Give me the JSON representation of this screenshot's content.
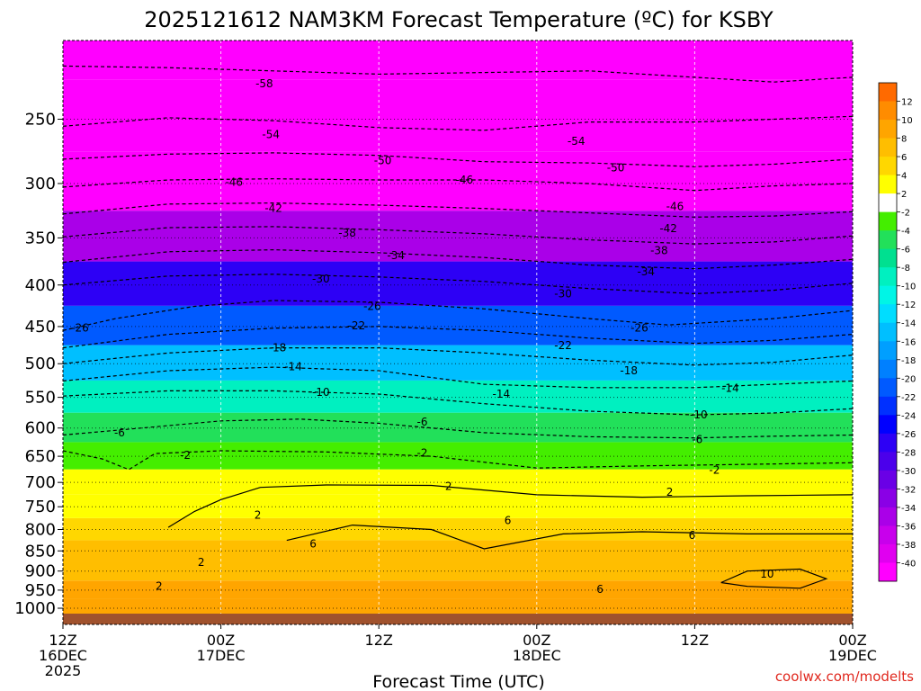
{
  "title": "2025121612 NAM3KM Forecast Temperature (ºC) for KSBY",
  "credit": "coolwx.com/modelts",
  "colors": {
    "credit": "#e0281e",
    "ground": "#a0522d"
  },
  "chart_data": {
    "type": "heatmap",
    "title": "2025121612 NAM3KM Forecast Temperature (ºC) for KSBY",
    "xlabel": "Forecast Time (UTC)",
    "ylabel": "",
    "x_ticks": [
      {
        "hour": 0,
        "lines": [
          "12Z",
          "16DEC",
          "2025"
        ]
      },
      {
        "hour": 12,
        "lines": [
          "00Z",
          "17DEC"
        ]
      },
      {
        "hour": 24,
        "lines": [
          "12Z"
        ]
      },
      {
        "hour": 36,
        "lines": [
          "00Z",
          "18DEC"
        ]
      },
      {
        "hour": 48,
        "lines": [
          "12Z"
        ]
      },
      {
        "hour": 60,
        "lines": [
          "00Z",
          "19DEC"
        ]
      }
    ],
    "xlim": [
      0,
      60
    ],
    "ylim": [
      1000,
      200
    ],
    "y_scale": "log-pressure",
    "y_ticks": [
      250,
      300,
      350,
      400,
      450,
      500,
      550,
      600,
      650,
      700,
      750,
      800,
      850,
      900,
      950,
      1000
    ],
    "colorbar": {
      "ticks": [
        12,
        10,
        8,
        6,
        4,
        2,
        -2,
        -4,
        -6,
        -8,
        -10,
        -12,
        -14,
        -16,
        -18,
        -20,
        -22,
        -24,
        -26,
        -28,
        -30,
        -32,
        -34,
        -36,
        -38,
        -40
      ],
      "levels": [
        {
          "min": 12,
          "max": 14,
          "color": "#ff6a00"
        },
        {
          "min": 10,
          "max": 12,
          "color": "#ff8c00"
        },
        {
          "min": 8,
          "max": 10,
          "color": "#ffa500"
        },
        {
          "min": 6,
          "max": 8,
          "color": "#ffbe00"
        },
        {
          "min": 4,
          "max": 6,
          "color": "#ffd700"
        },
        {
          "min": 2,
          "max": 4,
          "color": "#ffff00"
        },
        {
          "min": -2,
          "max": 2,
          "color": "#ffffff"
        },
        {
          "min": -4,
          "max": -2,
          "color": "#44ee00"
        },
        {
          "min": -6,
          "max": -4,
          "color": "#22e05a"
        },
        {
          "min": -8,
          "max": -6,
          "color": "#00e090"
        },
        {
          "min": -10,
          "max": -8,
          "color": "#00f0c0"
        },
        {
          "min": -12,
          "max": -10,
          "color": "#00f5e6"
        },
        {
          "min": -14,
          "max": -12,
          "color": "#00ddff"
        },
        {
          "min": -16,
          "max": -14,
          "color": "#00bfff"
        },
        {
          "min": -18,
          "max": -16,
          "color": "#009fff"
        },
        {
          "min": -20,
          "max": -18,
          "color": "#0080ff"
        },
        {
          "min": -22,
          "max": -20,
          "color": "#005aff"
        },
        {
          "min": -24,
          "max": -22,
          "color": "#0030ff"
        },
        {
          "min": -26,
          "max": -24,
          "color": "#0000ff"
        },
        {
          "min": -28,
          "max": -26,
          "color": "#2d00f5"
        },
        {
          "min": -30,
          "max": -28,
          "color": "#4b00eb"
        },
        {
          "min": -32,
          "max": -30,
          "color": "#6a00e6"
        },
        {
          "min": -34,
          "max": -32,
          "color": "#8a00e6"
        },
        {
          "min": -36,
          "max": -34,
          "color": "#aa00e8"
        },
        {
          "min": -38,
          "max": -36,
          "color": "#c800ec"
        },
        {
          "min": -40,
          "max": -38,
          "color": "#e000f0"
        },
        {
          "min": -70,
          "max": -40,
          "color": "#ff00ff"
        }
      ]
    },
    "temperature_profile": [
      {
        "p": 1000,
        "t": 8
      },
      {
        "p": 950,
        "t": 8
      },
      {
        "p": 900,
        "t": 7
      },
      {
        "p": 850,
        "t": 6
      },
      {
        "p": 800,
        "t": 5
      },
      {
        "p": 750,
        "t": 3
      },
      {
        "p": 700,
        "t": 2
      },
      {
        "p": 650,
        "t": -3
      },
      {
        "p": 600,
        "t": -6
      },
      {
        "p": 550,
        "t": -10
      },
      {
        "p": 500,
        "t": -16
      },
      {
        "p": 450,
        "t": -22
      },
      {
        "p": 400,
        "t": -28
      },
      {
        "p": 350,
        "t": -36
      },
      {
        "p": 300,
        "t": -45
      },
      {
        "p": 250,
        "t": -54
      },
      {
        "p": 200,
        "t": -60
      }
    ],
    "contours": [
      {
        "level": -58,
        "style": "dashed",
        "points": [
          [
            0,
            215
          ],
          [
            8,
            216
          ],
          [
            16,
            218
          ],
          [
            24,
            220
          ],
          [
            32,
            219
          ],
          [
            40,
            218
          ],
          [
            48,
            222
          ],
          [
            54,
            225
          ],
          [
            60,
            222
          ]
        ]
      },
      {
        "level": -54,
        "style": "dashed",
        "points": [
          [
            0,
            255
          ],
          [
            8,
            249
          ],
          [
            16,
            251
          ],
          [
            24,
            256
          ],
          [
            32,
            258
          ],
          [
            40,
            252
          ],
          [
            48,
            252
          ],
          [
            54,
            250
          ],
          [
            60,
            248
          ]
        ]
      },
      {
        "level": -50,
        "style": "dashed",
        "points": [
          [
            0,
            280
          ],
          [
            8,
            276
          ],
          [
            16,
            275
          ],
          [
            24,
            277
          ],
          [
            32,
            282
          ],
          [
            40,
            283
          ],
          [
            48,
            286
          ],
          [
            54,
            284
          ],
          [
            60,
            280
          ]
        ]
      },
      {
        "level": -46,
        "style": "dashed",
        "points": [
          [
            0,
            303
          ],
          [
            8,
            297
          ],
          [
            16,
            296
          ],
          [
            24,
            297
          ],
          [
            32,
            297
          ],
          [
            40,
            300
          ],
          [
            48,
            306
          ],
          [
            54,
            302
          ],
          [
            60,
            300
          ]
        ]
      },
      {
        "level": -42,
        "style": "dashed",
        "points": [
          [
            0,
            327
          ],
          [
            8,
            318
          ],
          [
            16,
            317
          ],
          [
            24,
            319
          ],
          [
            32,
            322
          ],
          [
            40,
            326
          ],
          [
            48,
            330
          ],
          [
            54,
            329
          ],
          [
            60,
            325
          ]
        ]
      },
      {
        "level": -38,
        "style": "dashed",
        "points": [
          [
            0,
            349
          ],
          [
            8,
            340
          ],
          [
            16,
            339
          ],
          [
            24,
            342
          ],
          [
            32,
            346
          ],
          [
            40,
            352
          ],
          [
            48,
            356
          ],
          [
            54,
            354
          ],
          [
            60,
            348
          ]
        ]
      },
      {
        "level": -34,
        "style": "dashed",
        "points": [
          [
            0,
            375
          ],
          [
            8,
            364
          ],
          [
            16,
            362
          ],
          [
            24,
            365
          ],
          [
            32,
            370
          ],
          [
            40,
            378
          ],
          [
            48,
            382
          ],
          [
            54,
            378
          ],
          [
            60,
            372
          ]
        ]
      },
      {
        "level": -30,
        "style": "dashed",
        "points": [
          [
            0,
            400
          ],
          [
            8,
            390
          ],
          [
            16,
            388
          ],
          [
            24,
            391
          ],
          [
            32,
            396
          ],
          [
            40,
            404
          ],
          [
            48,
            410
          ],
          [
            54,
            406
          ],
          [
            60,
            398
          ]
        ]
      },
      {
        "level": -26,
        "style": "dashed",
        "points": [
          [
            0,
            455
          ],
          [
            4,
            440
          ],
          [
            10,
            425
          ],
          [
            16,
            418
          ],
          [
            24,
            420
          ],
          [
            32,
            428
          ],
          [
            40,
            440
          ],
          [
            46,
            448
          ],
          [
            54,
            440
          ],
          [
            60,
            430
          ]
        ]
      },
      {
        "level": -22,
        "style": "dashed",
        "points": [
          [
            0,
            478
          ],
          [
            8,
            460
          ],
          [
            16,
            452
          ],
          [
            24,
            450
          ],
          [
            32,
            455
          ],
          [
            40,
            465
          ],
          [
            48,
            472
          ],
          [
            54,
            468
          ],
          [
            60,
            460
          ]
        ]
      },
      {
        "level": -18,
        "style": "dashed",
        "points": [
          [
            0,
            500
          ],
          [
            8,
            485
          ],
          [
            16,
            478
          ],
          [
            24,
            478
          ],
          [
            32,
            485
          ],
          [
            40,
            495
          ],
          [
            48,
            502
          ],
          [
            54,
            498
          ],
          [
            60,
            488
          ]
        ]
      },
      {
        "level": -14,
        "style": "dashed",
        "points": [
          [
            0,
            525
          ],
          [
            8,
            510
          ],
          [
            16,
            505
          ],
          [
            24,
            510
          ],
          [
            32,
            530
          ],
          [
            40,
            535
          ],
          [
            48,
            535
          ],
          [
            54,
            530
          ],
          [
            60,
            525
          ]
        ]
      },
      {
        "level": -10,
        "style": "dashed",
        "points": [
          [
            0,
            548
          ],
          [
            8,
            540
          ],
          [
            16,
            540
          ],
          [
            24,
            545
          ],
          [
            32,
            560
          ],
          [
            40,
            572
          ],
          [
            48,
            578
          ],
          [
            54,
            575
          ],
          [
            60,
            568
          ]
        ]
      },
      {
        "level": -6,
        "style": "dashed",
        "points": [
          [
            0,
            612
          ],
          [
            6,
            600
          ],
          [
            12,
            588
          ],
          [
            18,
            585
          ],
          [
            24,
            592
          ],
          [
            32,
            608
          ],
          [
            40,
            615
          ],
          [
            48,
            617
          ],
          [
            54,
            614
          ],
          [
            60,
            612
          ]
        ]
      },
      {
        "level": -2,
        "style": "dashed",
        "points": [
          [
            0,
            640
          ],
          [
            3,
            655
          ],
          [
            5,
            675
          ],
          [
            7,
            645
          ],
          [
            12,
            640
          ],
          [
            20,
            642
          ],
          [
            28,
            650
          ],
          [
            36,
            672
          ],
          [
            44,
            668
          ],
          [
            52,
            665
          ],
          [
            60,
            662
          ]
        ]
      },
      {
        "level": 2,
        "style": "solid",
        "points": [
          [
            8,
            795
          ],
          [
            10,
            760
          ],
          [
            12,
            735
          ],
          [
            15,
            710
          ],
          [
            20,
            705
          ],
          [
            28,
            706
          ],
          [
            36,
            725
          ],
          [
            44,
            730
          ],
          [
            52,
            727
          ],
          [
            60,
            725
          ]
        ]
      },
      {
        "level": 6,
        "style": "solid",
        "points": [
          [
            17,
            825
          ],
          [
            22,
            790
          ],
          [
            28,
            800
          ],
          [
            32,
            845
          ],
          [
            38,
            810
          ],
          [
            44,
            805
          ],
          [
            52,
            810
          ],
          [
            60,
            810
          ]
        ]
      },
      {
        "level": 10,
        "style": "solid",
        "points": [
          [
            50,
            930
          ],
          [
            52,
            900
          ],
          [
            56,
            895
          ],
          [
            58,
            920
          ],
          [
            56,
            945
          ],
          [
            52,
            940
          ],
          [
            50,
            930
          ]
        ]
      }
    ],
    "contour_labels": [
      {
        "text": "-58",
        "hour": 15.3,
        "p": 226
      },
      {
        "text": "-54",
        "hour": 15.8,
        "p": 261
      },
      {
        "text": "-54",
        "hour": 39.0,
        "p": 266
      },
      {
        "text": "-50",
        "hour": 24.3,
        "p": 281
      },
      {
        "text": "-50",
        "hour": 42.0,
        "p": 287
      },
      {
        "text": "-46",
        "hour": 13.0,
        "p": 299
      },
      {
        "text": "-46",
        "hour": 30.5,
        "p": 297
      },
      {
        "text": "-46",
        "hour": 46.5,
        "p": 320
      },
      {
        "text": "-42",
        "hour": 16.0,
        "p": 322
      },
      {
        "text": "-42",
        "hour": 46.0,
        "p": 341
      },
      {
        "text": "-38",
        "hour": 21.6,
        "p": 345
      },
      {
        "text": "-38",
        "hour": 45.3,
        "p": 363
      },
      {
        "text": "-34",
        "hour": 25.3,
        "p": 368
      },
      {
        "text": "-34",
        "hour": 44.3,
        "p": 385
      },
      {
        "text": "-30",
        "hour": 19.6,
        "p": 393
      },
      {
        "text": "-30",
        "hour": 38.0,
        "p": 410
      },
      {
        "text": "-26",
        "hour": 1.3,
        "p": 452
      },
      {
        "text": "-26",
        "hour": 23.5,
        "p": 425
      },
      {
        "text": "-26",
        "hour": 43.8,
        "p": 452
      },
      {
        "text": "-22",
        "hour": 22.3,
        "p": 449
      },
      {
        "text": "-22",
        "hour": 38.0,
        "p": 475
      },
      {
        "text": "-18",
        "hour": 16.3,
        "p": 478
      },
      {
        "text": "-18",
        "hour": 43.0,
        "p": 510
      },
      {
        "text": "-14",
        "hour": 17.5,
        "p": 504
      },
      {
        "text": "-14",
        "hour": 33.3,
        "p": 545
      },
      {
        "text": "-14",
        "hour": 50.7,
        "p": 536
      },
      {
        "text": "-10",
        "hour": 19.6,
        "p": 542
      },
      {
        "text": "-10",
        "hour": 48.3,
        "p": 578
      },
      {
        "text": "-6",
        "hour": 4.3,
        "p": 608
      },
      {
        "text": "-6",
        "hour": 27.3,
        "p": 590
      },
      {
        "text": "-6",
        "hour": 48.2,
        "p": 620
      },
      {
        "text": "-2",
        "hour": 9.3,
        "p": 648
      },
      {
        "text": "-2",
        "hour": 27.3,
        "p": 644
      },
      {
        "text": "-2",
        "hour": 49.5,
        "p": 676
      },
      {
        "text": "2",
        "hour": 14.8,
        "p": 768
      },
      {
        "text": "2",
        "hour": 29.3,
        "p": 708
      },
      {
        "text": "2",
        "hour": 46.1,
        "p": 720
      },
      {
        "text": "2",
        "hour": 10.5,
        "p": 878
      },
      {
        "text": "2",
        "hour": 7.3,
        "p": 940
      },
      {
        "text": "6",
        "hour": 33.8,
        "p": 780
      },
      {
        "text": "6",
        "hour": 19.0,
        "p": 833
      },
      {
        "text": "6",
        "hour": 47.8,
        "p": 813
      },
      {
        "text": "6",
        "hour": 40.8,
        "p": 948
      },
      {
        "text": "10",
        "hour": 53.5,
        "p": 908
      }
    ]
  }
}
